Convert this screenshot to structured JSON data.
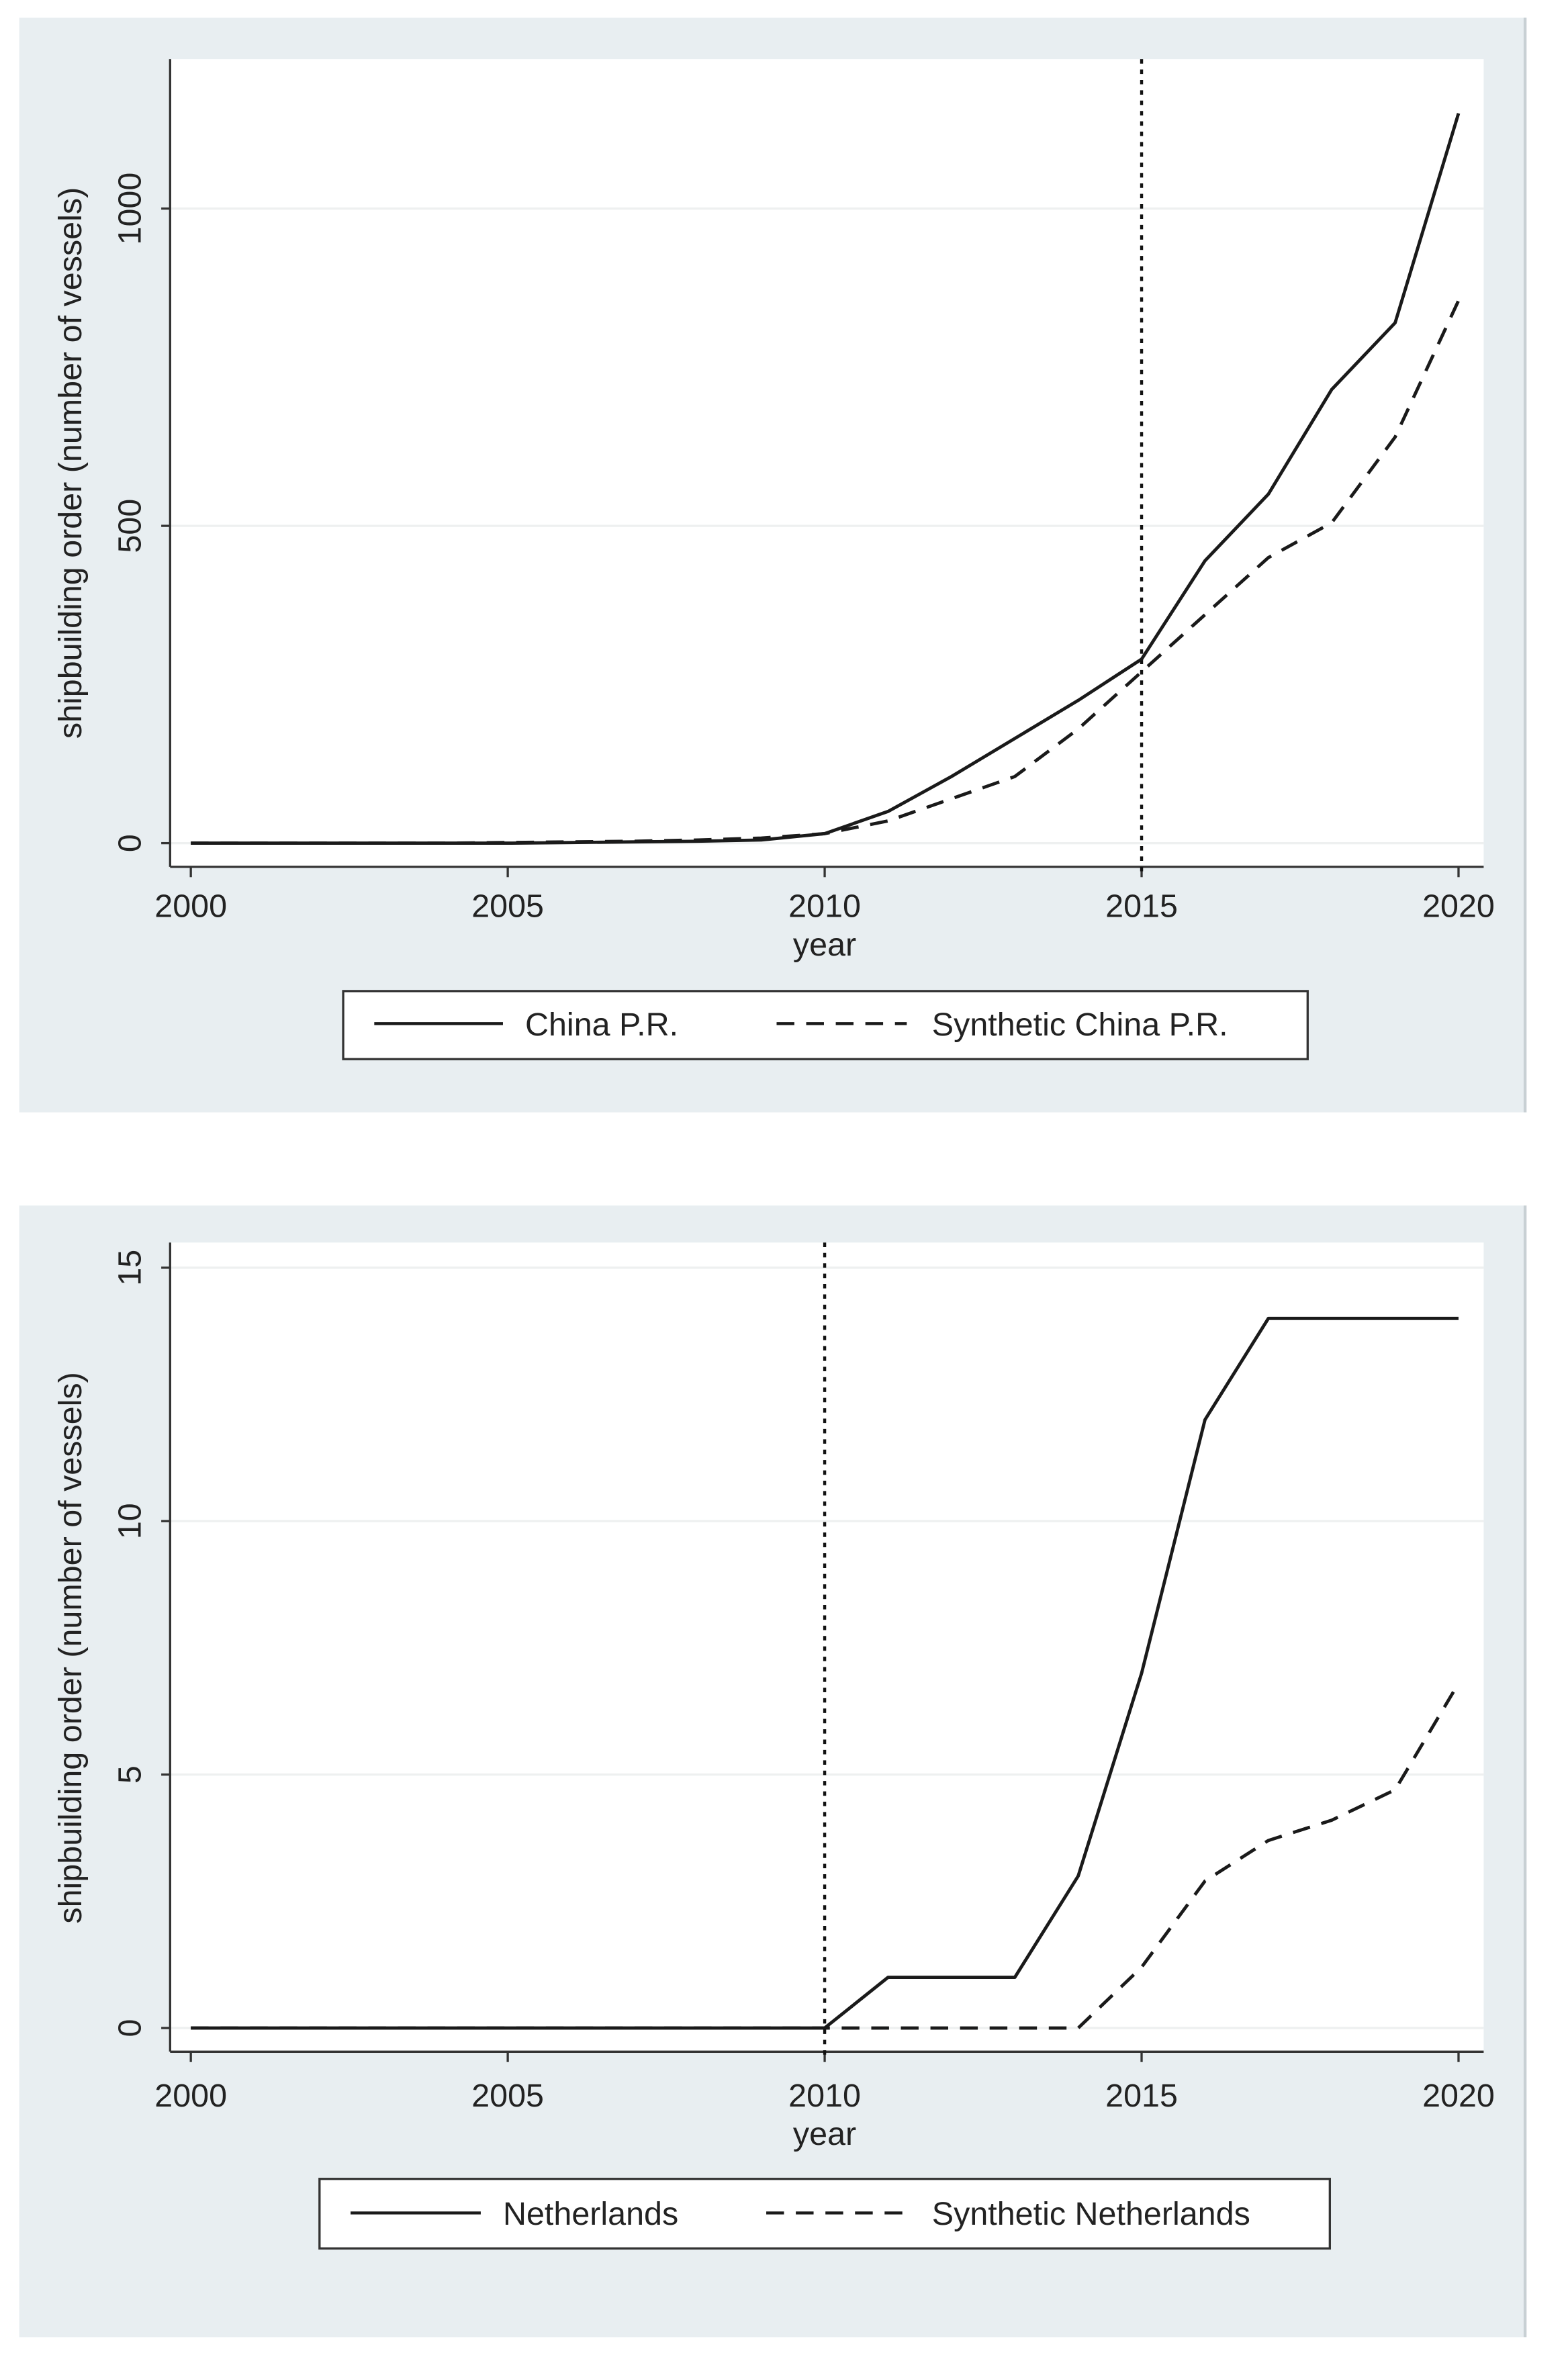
{
  "chart_data": [
    {
      "type": "line",
      "xlabel": "year",
      "ylabel": "shipbuilding order (number of vessels)",
      "xlim": [
        2000,
        2020
      ],
      "ylim": [
        0,
        1150
      ],
      "xticks": [
        2000,
        2005,
        2010,
        2015,
        2020
      ],
      "yticks": [
        0,
        500,
        1000
      ],
      "grid": true,
      "legend": "bottom",
      "vline": 2015,
      "x": [
        2000,
        2001,
        2002,
        2003,
        2004,
        2005,
        2006,
        2007,
        2008,
        2009,
        2010,
        2011,
        2012,
        2013,
        2014,
        2015,
        2016,
        2017,
        2018,
        2019,
        2020
      ],
      "series": [
        {
          "name": "China P.R.",
          "style": "solid",
          "values": [
            0,
            0,
            0,
            0,
            0,
            0,
            1,
            2,
            3,
            5,
            15,
            50,
            105,
            165,
            225,
            290,
            445,
            550,
            715,
            820,
            1150
          ]
        },
        {
          "name": "Synthetic China P.R.",
          "style": "dashed",
          "values": [
            0,
            0,
            0,
            0,
            0,
            1,
            2,
            3,
            5,
            8,
            15,
            35,
            70,
            105,
            180,
            270,
            360,
            450,
            505,
            640,
            855
          ]
        }
      ]
    },
    {
      "type": "line",
      "xlabel": "year",
      "ylabel": "shipbuilding order (number of vessels)",
      "xlim": [
        2000,
        2020
      ],
      "ylim": [
        0,
        15
      ],
      "xticks": [
        2000,
        2005,
        2010,
        2015,
        2020
      ],
      "yticks": [
        0,
        5,
        10,
        15
      ],
      "grid": true,
      "legend": "bottom",
      "vline": 2010,
      "x": [
        2000,
        2001,
        2002,
        2003,
        2004,
        2005,
        2006,
        2007,
        2008,
        2009,
        2010,
        2011,
        2012,
        2013,
        2014,
        2015,
        2016,
        2017,
        2018,
        2019,
        2020
      ],
      "series": [
        {
          "name": "Netherlands",
          "style": "solid",
          "values": [
            0,
            0,
            0,
            0,
            0,
            0,
            0,
            0,
            0,
            0,
            0,
            1,
            1,
            1,
            3,
            7,
            12,
            14,
            14,
            14,
            14
          ]
        },
        {
          "name": "Synthetic Netherlands",
          "style": "dashed",
          "values": [
            0,
            0,
            0,
            0,
            0,
            0,
            0,
            0,
            0,
            0,
            0,
            0,
            0,
            0,
            0,
            1.2,
            2.9,
            3.7,
            4.1,
            4.7,
            6.8
          ]
        }
      ]
    }
  ],
  "colors": {
    "panel_bg": "#e8eef1",
    "plot_bg": "#ffffff",
    "line": "#1a1a1a",
    "grid": "#eef0f0"
  }
}
